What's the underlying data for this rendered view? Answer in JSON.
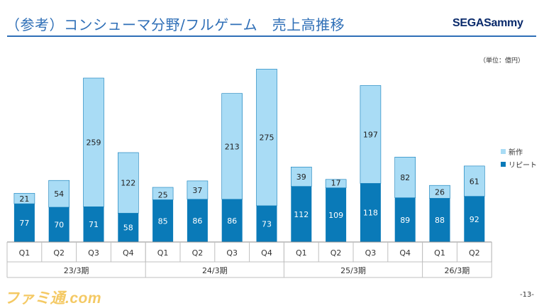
{
  "slide": {
    "title": "（参考）コンシューマ分野/フルゲーム　売上高推移",
    "logo": "SEGASammy",
    "unit": "（単位：億円）",
    "page_number": "-13-",
    "watermark": "ファミ通.com"
  },
  "colors": {
    "title": "#2f6fb7",
    "new_titles": "#a9dcf5",
    "repeat": "#0a7ab8"
  },
  "chart_data": {
    "type": "bar",
    "stacked": true,
    "categories": [
      "Q1",
      "Q2",
      "Q3",
      "Q4",
      "Q1",
      "Q2",
      "Q3",
      "Q4",
      "Q1",
      "Q2",
      "Q3",
      "Q4",
      "Q1",
      "Q2"
    ],
    "groups": [
      {
        "label": "23/3期",
        "span": 4
      },
      {
        "label": "24/3期",
        "span": 4
      },
      {
        "label": "25/3期",
        "span": 4
      },
      {
        "label": "26/3期",
        "span": 2
      }
    ],
    "series": [
      {
        "name": "リピート",
        "values": [
          77,
          70,
          71,
          58,
          85,
          86,
          86,
          73,
          112,
          109,
          118,
          89,
          88,
          92
        ]
      },
      {
        "name": "新作",
        "values": [
          21,
          54,
          259,
          122,
          25,
          37,
          213,
          275,
          39,
          17,
          197,
          82,
          26,
          61
        ]
      }
    ],
    "legend": {
      "position": "right",
      "entries": [
        "新作",
        "リピート"
      ]
    },
    "title": "",
    "xlabel": "",
    "ylabel": "",
    "ylim": [
      0,
      350
    ],
    "grid": false
  }
}
